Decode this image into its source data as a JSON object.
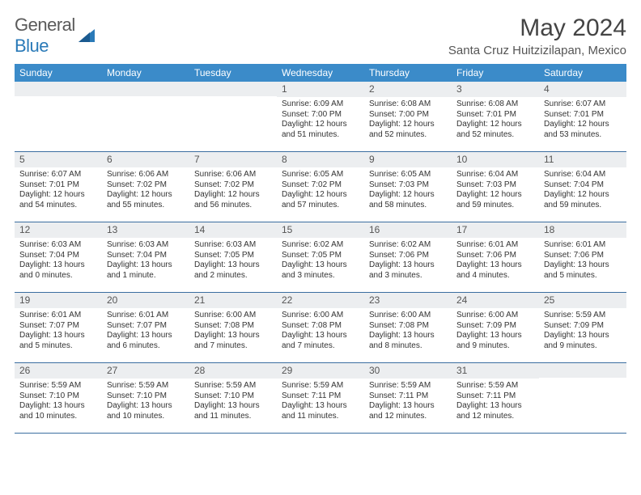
{
  "logo": {
    "text1": "General",
    "text2": "Blue"
  },
  "title": "May 2024",
  "location": "Santa Cruz Huitzizilapan, Mexico",
  "colors": {
    "header_bg": "#3b8bc9",
    "header_text": "#ffffff",
    "daynum_bg": "#eceef0",
    "week_divider": "#3b6ea0",
    "body_text": "#333333",
    "logo_gray": "#5a5a5a",
    "logo_blue": "#2a7ab8"
  },
  "weekdays": [
    "Sunday",
    "Monday",
    "Tuesday",
    "Wednesday",
    "Thursday",
    "Friday",
    "Saturday"
  ],
  "weeks": [
    [
      {
        "num": "",
        "lines": []
      },
      {
        "num": "",
        "lines": []
      },
      {
        "num": "",
        "lines": []
      },
      {
        "num": "1",
        "lines": [
          "Sunrise: 6:09 AM",
          "Sunset: 7:00 PM",
          "Daylight: 12 hours",
          "and 51 minutes."
        ]
      },
      {
        "num": "2",
        "lines": [
          "Sunrise: 6:08 AM",
          "Sunset: 7:00 PM",
          "Daylight: 12 hours",
          "and 52 minutes."
        ]
      },
      {
        "num": "3",
        "lines": [
          "Sunrise: 6:08 AM",
          "Sunset: 7:01 PM",
          "Daylight: 12 hours",
          "and 52 minutes."
        ]
      },
      {
        "num": "4",
        "lines": [
          "Sunrise: 6:07 AM",
          "Sunset: 7:01 PM",
          "Daylight: 12 hours",
          "and 53 minutes."
        ]
      }
    ],
    [
      {
        "num": "5",
        "lines": [
          "Sunrise: 6:07 AM",
          "Sunset: 7:01 PM",
          "Daylight: 12 hours",
          "and 54 minutes."
        ]
      },
      {
        "num": "6",
        "lines": [
          "Sunrise: 6:06 AM",
          "Sunset: 7:02 PM",
          "Daylight: 12 hours",
          "and 55 minutes."
        ]
      },
      {
        "num": "7",
        "lines": [
          "Sunrise: 6:06 AM",
          "Sunset: 7:02 PM",
          "Daylight: 12 hours",
          "and 56 minutes."
        ]
      },
      {
        "num": "8",
        "lines": [
          "Sunrise: 6:05 AM",
          "Sunset: 7:02 PM",
          "Daylight: 12 hours",
          "and 57 minutes."
        ]
      },
      {
        "num": "9",
        "lines": [
          "Sunrise: 6:05 AM",
          "Sunset: 7:03 PM",
          "Daylight: 12 hours",
          "and 58 minutes."
        ]
      },
      {
        "num": "10",
        "lines": [
          "Sunrise: 6:04 AM",
          "Sunset: 7:03 PM",
          "Daylight: 12 hours",
          "and 59 minutes."
        ]
      },
      {
        "num": "11",
        "lines": [
          "Sunrise: 6:04 AM",
          "Sunset: 7:04 PM",
          "Daylight: 12 hours",
          "and 59 minutes."
        ]
      }
    ],
    [
      {
        "num": "12",
        "lines": [
          "Sunrise: 6:03 AM",
          "Sunset: 7:04 PM",
          "Daylight: 13 hours",
          "and 0 minutes."
        ]
      },
      {
        "num": "13",
        "lines": [
          "Sunrise: 6:03 AM",
          "Sunset: 7:04 PM",
          "Daylight: 13 hours",
          "and 1 minute."
        ]
      },
      {
        "num": "14",
        "lines": [
          "Sunrise: 6:03 AM",
          "Sunset: 7:05 PM",
          "Daylight: 13 hours",
          "and 2 minutes."
        ]
      },
      {
        "num": "15",
        "lines": [
          "Sunrise: 6:02 AM",
          "Sunset: 7:05 PM",
          "Daylight: 13 hours",
          "and 3 minutes."
        ]
      },
      {
        "num": "16",
        "lines": [
          "Sunrise: 6:02 AM",
          "Sunset: 7:06 PM",
          "Daylight: 13 hours",
          "and 3 minutes."
        ]
      },
      {
        "num": "17",
        "lines": [
          "Sunrise: 6:01 AM",
          "Sunset: 7:06 PM",
          "Daylight: 13 hours",
          "and 4 minutes."
        ]
      },
      {
        "num": "18",
        "lines": [
          "Sunrise: 6:01 AM",
          "Sunset: 7:06 PM",
          "Daylight: 13 hours",
          "and 5 minutes."
        ]
      }
    ],
    [
      {
        "num": "19",
        "lines": [
          "Sunrise: 6:01 AM",
          "Sunset: 7:07 PM",
          "Daylight: 13 hours",
          "and 5 minutes."
        ]
      },
      {
        "num": "20",
        "lines": [
          "Sunrise: 6:01 AM",
          "Sunset: 7:07 PM",
          "Daylight: 13 hours",
          "and 6 minutes."
        ]
      },
      {
        "num": "21",
        "lines": [
          "Sunrise: 6:00 AM",
          "Sunset: 7:08 PM",
          "Daylight: 13 hours",
          "and 7 minutes."
        ]
      },
      {
        "num": "22",
        "lines": [
          "Sunrise: 6:00 AM",
          "Sunset: 7:08 PM",
          "Daylight: 13 hours",
          "and 7 minutes."
        ]
      },
      {
        "num": "23",
        "lines": [
          "Sunrise: 6:00 AM",
          "Sunset: 7:08 PM",
          "Daylight: 13 hours",
          "and 8 minutes."
        ]
      },
      {
        "num": "24",
        "lines": [
          "Sunrise: 6:00 AM",
          "Sunset: 7:09 PM",
          "Daylight: 13 hours",
          "and 9 minutes."
        ]
      },
      {
        "num": "25",
        "lines": [
          "Sunrise: 5:59 AM",
          "Sunset: 7:09 PM",
          "Daylight: 13 hours",
          "and 9 minutes."
        ]
      }
    ],
    [
      {
        "num": "26",
        "lines": [
          "Sunrise: 5:59 AM",
          "Sunset: 7:10 PM",
          "Daylight: 13 hours",
          "and 10 minutes."
        ]
      },
      {
        "num": "27",
        "lines": [
          "Sunrise: 5:59 AM",
          "Sunset: 7:10 PM",
          "Daylight: 13 hours",
          "and 10 minutes."
        ]
      },
      {
        "num": "28",
        "lines": [
          "Sunrise: 5:59 AM",
          "Sunset: 7:10 PM",
          "Daylight: 13 hours",
          "and 11 minutes."
        ]
      },
      {
        "num": "29",
        "lines": [
          "Sunrise: 5:59 AM",
          "Sunset: 7:11 PM",
          "Daylight: 13 hours",
          "and 11 minutes."
        ]
      },
      {
        "num": "30",
        "lines": [
          "Sunrise: 5:59 AM",
          "Sunset: 7:11 PM",
          "Daylight: 13 hours",
          "and 12 minutes."
        ]
      },
      {
        "num": "31",
        "lines": [
          "Sunrise: 5:59 AM",
          "Sunset: 7:11 PM",
          "Daylight: 13 hours",
          "and 12 minutes."
        ]
      },
      {
        "num": "",
        "lines": []
      }
    ]
  ]
}
